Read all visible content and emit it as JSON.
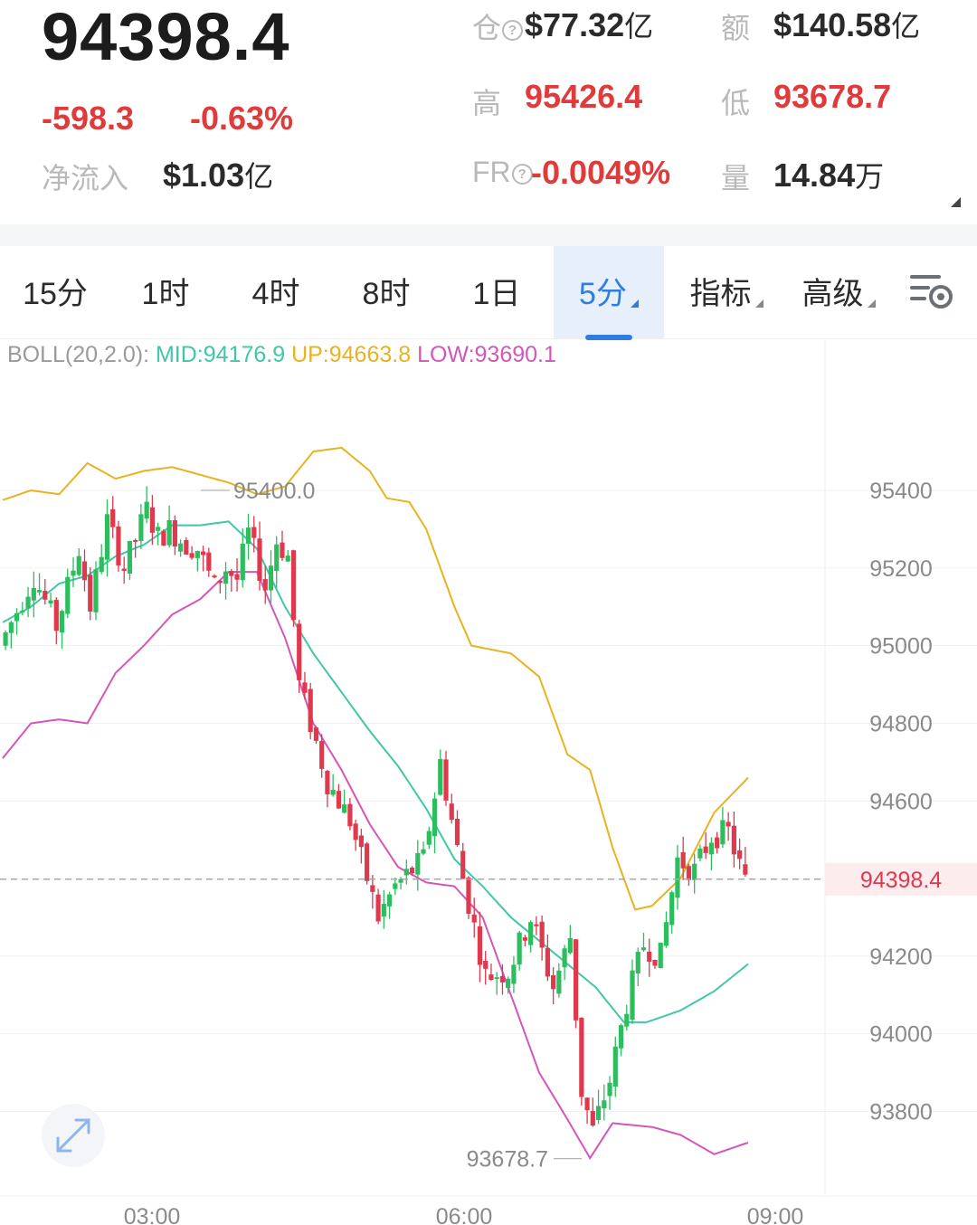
{
  "header": {
    "last_price": "94398.4",
    "change": "-598.3",
    "change_pct": "-0.63%",
    "net_inflow": {
      "label": "净流入",
      "value": "$1.03",
      "unit": "亿"
    },
    "open_interest": {
      "label": "仓",
      "value": "$77.32",
      "unit": "亿"
    },
    "turnover": {
      "label": "额",
      "value": "$140.58",
      "unit": "亿"
    },
    "high": {
      "label": "高",
      "value": "95426.4"
    },
    "low": {
      "label": "低",
      "value": "93678.7"
    },
    "funding_rate": {
      "label": "FR",
      "value": "-0.0049%"
    },
    "volume": {
      "label": "量",
      "value": "14.84",
      "unit": "万"
    }
  },
  "tabs": [
    {
      "label": "15分"
    },
    {
      "label": "1时"
    },
    {
      "label": "4时"
    },
    {
      "label": "8时"
    },
    {
      "label": "1日"
    },
    {
      "label": "5分",
      "active": true
    },
    {
      "label": "指标"
    },
    {
      "label": "高级"
    }
  ],
  "indicator": {
    "name": "BOLL(20,2.0):",
    "mid": "MID:94176.9",
    "up": "UP:94663.8",
    "low": "LOW:93690.1"
  },
  "colors": {
    "up_candle": "#2dbd5f",
    "down_candle": "#e0394d",
    "mid_line": "#3fc7a8",
    "upper_band": "#e8b321",
    "lower_band": "#d456b9",
    "accent": "#2f7de1"
  },
  "chart_data": {
    "type": "candlestick",
    "interval": "5分",
    "y_ticks": [
      95400,
      95200,
      95000,
      94800,
      94600,
      94400,
      94200,
      94000,
      93800
    ],
    "y_tick_labels": [
      "95400",
      "95200",
      "95000",
      "94800",
      "94600",
      "",
      "94200",
      "94000",
      "93800"
    ],
    "x_tick_labels": [
      "03:00",
      "06:00",
      "09:00"
    ],
    "ylim": [
      93620,
      95720
    ],
    "last_price": 94398.4,
    "last_price_label": "94398.4",
    "high_marker": {
      "value": 95400.0,
      "label": "95400.0"
    },
    "low_marker": {
      "value": 93678.7,
      "label": "93678.7"
    },
    "close_path": [
      [
        0,
        95000
      ],
      [
        6,
        95180
      ],
      [
        10,
        95050
      ],
      [
        14,
        95250
      ],
      [
        16,
        95100
      ],
      [
        19,
        95320
      ],
      [
        22,
        95200
      ],
      [
        26,
        95350
      ],
      [
        28,
        95280
      ],
      [
        30,
        95300
      ],
      [
        33,
        95260
      ],
      [
        35,
        95250
      ],
      [
        38,
        95150
      ],
      [
        40,
        95200
      ],
      [
        42,
        95170
      ],
      [
        44,
        95290
      ],
      [
        47,
        95150
      ],
      [
        49,
        95270
      ],
      [
        51,
        95230
      ],
      [
        53,
        94900
      ],
      [
        58,
        94650
      ],
      [
        62,
        94550
      ],
      [
        67,
        94300
      ],
      [
        70,
        94380
      ],
      [
        75,
        94450
      ],
      [
        78,
        94700
      ],
      [
        82,
        94400
      ],
      [
        86,
        94150
      ],
      [
        90,
        94160
      ],
      [
        94,
        94300
      ],
      [
        98,
        94120
      ],
      [
        101,
        94250
      ],
      [
        103,
        93850
      ],
      [
        105,
        93750
      ],
      [
        108,
        93880
      ],
      [
        111,
        94080
      ],
      [
        114,
        94230
      ],
      [
        117,
        94200
      ],
      [
        120,
        94450
      ],
      [
        123,
        94420
      ],
      [
        126,
        94510
      ],
      [
        129,
        94520
      ],
      [
        132,
        94390
      ]
    ],
    "upper_band": [
      [
        0,
        95375
      ],
      [
        5,
        95400
      ],
      [
        10,
        95390
      ],
      [
        15,
        95470
      ],
      [
        20,
        95430
      ],
      [
        25,
        95450
      ],
      [
        30,
        95460
      ],
      [
        40,
        95420
      ],
      [
        45,
        95390
      ],
      [
        50,
        95410
      ],
      [
        55,
        95500
      ],
      [
        60,
        95510
      ],
      [
        65,
        95450
      ],
      [
        68,
        95380
      ],
      [
        72,
        95370
      ],
      [
        75,
        95300
      ],
      [
        80,
        95100
      ],
      [
        83,
        95000
      ],
      [
        90,
        94980
      ],
      [
        95,
        94920
      ],
      [
        100,
        94720
      ],
      [
        104,
        94680
      ],
      [
        108,
        94480
      ],
      [
        112,
        94320
      ],
      [
        115,
        94330
      ],
      [
        120,
        94400
      ],
      [
        126,
        94570
      ],
      [
        132,
        94660
      ]
    ],
    "mid_band": [
      [
        0,
        95060
      ],
      [
        5,
        95100
      ],
      [
        10,
        95160
      ],
      [
        15,
        95180
      ],
      [
        20,
        95230
      ],
      [
        25,
        95260
      ],
      [
        30,
        95310
      ],
      [
        35,
        95310
      ],
      [
        40,
        95320
      ],
      [
        45,
        95250
      ],
      [
        50,
        95100
      ],
      [
        55,
        94980
      ],
      [
        60,
        94880
      ],
      [
        65,
        94780
      ],
      [
        70,
        94690
      ],
      [
        75,
        94580
      ],
      [
        80,
        94450
      ],
      [
        85,
        94380
      ],
      [
        90,
        94300
      ],
      [
        95,
        94240
      ],
      [
        100,
        94180
      ],
      [
        105,
        94120
      ],
      [
        110,
        94030
      ],
      [
        114,
        94030
      ],
      [
        120,
        94060
      ],
      [
        126,
        94110
      ],
      [
        132,
        94180
      ]
    ],
    "lower_band": [
      [
        0,
        94710
      ],
      [
        5,
        94800
      ],
      [
        10,
        94810
      ],
      [
        15,
        94800
      ],
      [
        20,
        94930
      ],
      [
        25,
        95000
      ],
      [
        30,
        95080
      ],
      [
        35,
        95120
      ],
      [
        40,
        95190
      ],
      [
        45,
        95190
      ],
      [
        50,
        95020
      ],
      [
        55,
        94800
      ],
      [
        60,
        94680
      ],
      [
        65,
        94540
      ],
      [
        70,
        94430
      ],
      [
        75,
        94390
      ],
      [
        80,
        94380
      ],
      [
        85,
        94300
      ],
      [
        90,
        94100
      ],
      [
        95,
        93900
      ],
      [
        100,
        93780
      ],
      [
        104,
        93680
      ],
      [
        108,
        93770
      ],
      [
        115,
        93760
      ],
      [
        120,
        93740
      ],
      [
        126,
        93690
      ],
      [
        132,
        93720
      ]
    ],
    "candle_count": 132
  }
}
